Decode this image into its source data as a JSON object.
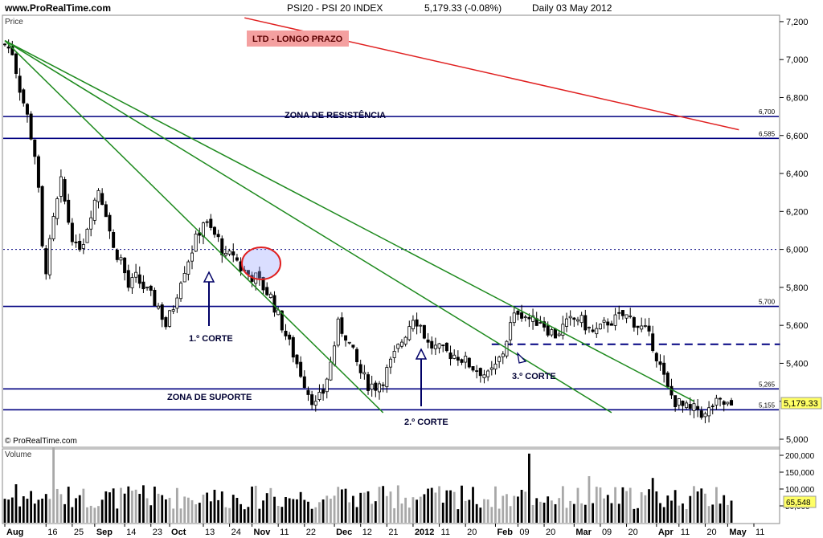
{
  "header": {
    "site": "www.ProRealTime.com",
    "instrument": "PSI20 - PSI 20 INDEX",
    "quote": "5,179.33 (-0.08%)",
    "period": "Daily  03 May 2012"
  },
  "labels": {
    "price_panel": "Price",
    "volume_panel": "Volume",
    "copyright": "© ProRealTime.com"
  },
  "chart_data": {
    "type": "candlestick",
    "price_axis": {
      "min": 5000,
      "max": 7200,
      "ticks": [
        5000,
        5200,
        5400,
        5600,
        5800,
        6000,
        6200,
        6400,
        6600,
        6800,
        7000,
        7200
      ],
      "tick_labels": [
        "5,000",
        "5,200",
        "5,400",
        "5,600",
        "5,800",
        "6,000",
        "6,200",
        "6,400",
        "6,600",
        "6,800",
        "7,000",
        "7,200"
      ]
    },
    "volume_axis": {
      "ticks": [
        50000,
        100000,
        150000,
        200000
      ],
      "tick_labels": [
        "50,000",
        "100,000",
        "150,000",
        "200,000"
      ]
    },
    "time_axis": [
      {
        "label": "Aug",
        "bar": 0,
        "major": true
      },
      {
        "label": "16",
        "bar": 11
      },
      {
        "label": "25",
        "bar": 18
      },
      {
        "label": "Sep",
        "bar": 24,
        "major": true
      },
      {
        "label": "14",
        "bar": 32
      },
      {
        "label": "23",
        "bar": 39
      },
      {
        "label": "Oct",
        "bar": 44,
        "major": true
      },
      {
        "label": "13",
        "bar": 53
      },
      {
        "label": "24",
        "bar": 60
      },
      {
        "label": "Nov",
        "bar": 66,
        "major": true
      },
      {
        "label": "11",
        "bar": 73
      },
      {
        "label": "22",
        "bar": 80
      },
      {
        "label": "Dec",
        "bar": 88,
        "major": true
      },
      {
        "label": "12",
        "bar": 95
      },
      {
        "label": "21",
        "bar": 102
      },
      {
        "label": "2012",
        "bar": 109,
        "major": true
      },
      {
        "label": "11",
        "bar": 116
      },
      {
        "label": "20",
        "bar": 123
      },
      {
        "label": "Feb",
        "bar": 131,
        "major": true
      },
      {
        "label": "09",
        "bar": 137
      },
      {
        "label": "20",
        "bar": 144
      },
      {
        "label": "Mar",
        "bar": 152,
        "major": true
      },
      {
        "label": "09",
        "bar": 159
      },
      {
        "label": "20",
        "bar": 166
      },
      {
        "label": "Apr",
        "bar": 174,
        "major": true
      },
      {
        "label": "11",
        "bar": 180
      },
      {
        "label": "20",
        "bar": 187
      },
      {
        "label": "May",
        "bar": 193,
        "major": true
      },
      {
        "label": "11",
        "bar": 200
      }
    ],
    "last_close": 5179.33,
    "last_close_label": "5,179.33",
    "last_volume": 65548,
    "last_volume_label": "65,548",
    "dotted_level": 6000,
    "key_path": [
      [
        0,
        7080
      ],
      [
        2,
        7040
      ],
      [
        4,
        6850
      ],
      [
        6,
        6700
      ],
      [
        8,
        6500
      ],
      [
        9,
        6300
      ],
      [
        10,
        6000
      ],
      [
        11,
        5900
      ],
      [
        13,
        6150
      ],
      [
        15,
        6350
      ],
      [
        17,
        6150
      ],
      [
        19,
        6000
      ],
      [
        21,
        6050
      ],
      [
        23,
        6200
      ],
      [
        25,
        6320
      ],
      [
        27,
        6200
      ],
      [
        29,
        6000
      ],
      [
        31,
        5950
      ],
      [
        33,
        5800
      ],
      [
        35,
        5850
      ],
      [
        37,
        5800
      ],
      [
        39,
        5750
      ],
      [
        41,
        5700
      ],
      [
        43,
        5600
      ],
      [
        45,
        5700
      ],
      [
        47,
        5850
      ],
      [
        49,
        5950
      ],
      [
        51,
        6050
      ],
      [
        53,
        6150
      ],
      [
        55,
        6100
      ],
      [
        57,
        6050
      ],
      [
        59,
        5950
      ],
      [
        61,
        5980
      ],
      [
        63,
        5900
      ],
      [
        65,
        5870
      ],
      [
        67,
        5850
      ],
      [
        69,
        5800
      ],
      [
        71,
        5750
      ],
      [
        73,
        5650
      ],
      [
        75,
        5550
      ],
      [
        77,
        5450
      ],
      [
        79,
        5350
      ],
      [
        81,
        5250
      ],
      [
        83,
        5180
      ],
      [
        85,
        5250
      ],
      [
        87,
        5400
      ],
      [
        89,
        5600
      ],
      [
        91,
        5550
      ],
      [
        93,
        5450
      ],
      [
        95,
        5350
      ],
      [
        97,
        5290
      ],
      [
        99,
        5280
      ],
      [
        101,
        5320
      ],
      [
        103,
        5400
      ],
      [
        105,
        5480
      ],
      [
        107,
        5560
      ],
      [
        109,
        5650
      ],
      [
        111,
        5600
      ],
      [
        113,
        5500
      ],
      [
        115,
        5480
      ],
      [
        117,
        5460
      ],
      [
        119,
        5450
      ],
      [
        121,
        5440
      ],
      [
        123,
        5410
      ],
      [
        125,
        5380
      ],
      [
        127,
        5360
      ],
      [
        129,
        5330
      ],
      [
        131,
        5380
      ],
      [
        133,
        5460
      ],
      [
        135,
        5600
      ],
      [
        137,
        5680
      ],
      [
        139,
        5650
      ],
      [
        141,
        5620
      ],
      [
        143,
        5630
      ],
      [
        145,
        5580
      ],
      [
        147,
        5550
      ],
      [
        149,
        5590
      ],
      [
        151,
        5620
      ],
      [
        153,
        5640
      ],
      [
        155,
        5600
      ],
      [
        157,
        5560
      ],
      [
        159,
        5580
      ],
      [
        161,
        5620
      ],
      [
        163,
        5630
      ],
      [
        165,
        5650
      ],
      [
        167,
        5640
      ],
      [
        169,
        5600
      ],
      [
        171,
        5570
      ],
      [
        173,
        5500
      ],
      [
        175,
        5380
      ],
      [
        177,
        5260
      ],
      [
        179,
        5200
      ],
      [
        181,
        5170
      ],
      [
        183,
        5150
      ],
      [
        185,
        5160
      ],
      [
        187,
        5120
      ],
      [
        189,
        5180
      ],
      [
        191,
        5190
      ],
      [
        193,
        5180
      ],
      [
        194,
        5179
      ]
    ],
    "trendlines": [
      {
        "name": "LTD - LONGO PRAZO",
        "color": "#e02020",
        "from": [
          64,
          7220
        ],
        "to": [
          196,
          6630
        ],
        "axis": "time"
      },
      {
        "color": "#1e8a1e",
        "from": [
          0,
          7100
        ],
        "to": [
          101,
          5140
        ]
      },
      {
        "color": "#1e8a1e",
        "from": [
          0,
          7100
        ],
        "to": [
          162,
          5140
        ]
      },
      {
        "color": "#1e8a1e",
        "from": [
          0,
          7100
        ],
        "to": [
          184,
          5200
        ]
      }
    ],
    "horizontal_levels": [
      {
        "value": 6700,
        "label": "6,700"
      },
      {
        "value": 6585,
        "label": "6,585"
      },
      {
        "value": 5700,
        "label": "5,700"
      },
      {
        "value": 5265,
        "label": "5,265"
      },
      {
        "value": 5155,
        "label": "5,155"
      }
    ],
    "dashed_level": {
      "value": 5500,
      "from": 130,
      "to": 207
    },
    "annotations": [
      {
        "text": "LTD - LONGO PRAZO",
        "box_color": "#f4a0a0"
      },
      {
        "text": "ZONA DE RESISTÊNCIA"
      },
      {
        "text": "ZONA DE SUPORTE"
      },
      {
        "text": "1.º CORTE"
      },
      {
        "text": "2.º CORTE"
      },
      {
        "text": "3.º CORTE"
      }
    ]
  }
}
